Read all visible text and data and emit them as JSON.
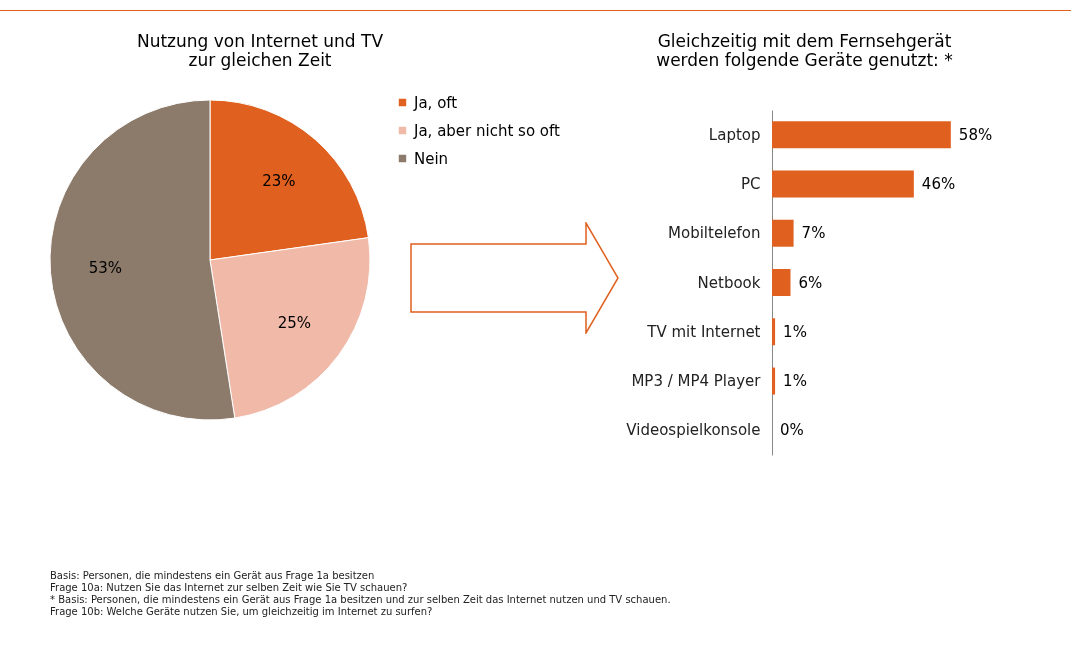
{
  "chart_data": [
    {
      "type": "pie",
      "title": [
        "Nutzung von Internet und TV",
        "zur gleichen Zeit"
      ],
      "categories": [
        "Ja, oft",
        "Ja, aber nicht so oft",
        "Nein"
      ],
      "values": [
        23,
        25,
        53
      ],
      "colors": [
        "#e0601f",
        "#f0b9a8",
        "#8c7b6b"
      ],
      "value_labels": [
        "23%",
        "25%",
        "53%"
      ],
      "legend": "right",
      "annotations": [
        "Basis: Personen, die mindestens ein Gerät aus Frage 1a besitzen",
        "Frage 10a: Nutzen Sie das Internet zur selben Zeit wie Sie TV schauen?",
        "* Basis: Personen, die mindestens ein Gerät aus Frage 1a besitzen und zur selben Zeit das Internet nutzen und TV schauen.",
        "Frage 10b: Welche Geräte nutzen Sie, um gleichzeitig im Internet zu surfen?"
      ]
    },
    {
      "type": "bar",
      "orientation": "horizontal",
      "title": [
        "Gleichzeitig mit dem Fernsehgerät",
        "werden folgende Geräte genutzt: *"
      ],
      "categories": [
        "Laptop",
        "PC",
        "Mobiltelefon",
        "Netbook",
        "TV mit Internet",
        "MP3 / MP4 Player",
        "Videospielkonsole"
      ],
      "values": [
        58,
        46,
        7,
        6,
        1,
        1,
        0
      ],
      "color": "#e0601f",
      "value_labels": [
        "58%",
        "46%",
        "7%",
        "6%",
        "1%",
        "1%",
        "0%"
      ]
    }
  ]
}
